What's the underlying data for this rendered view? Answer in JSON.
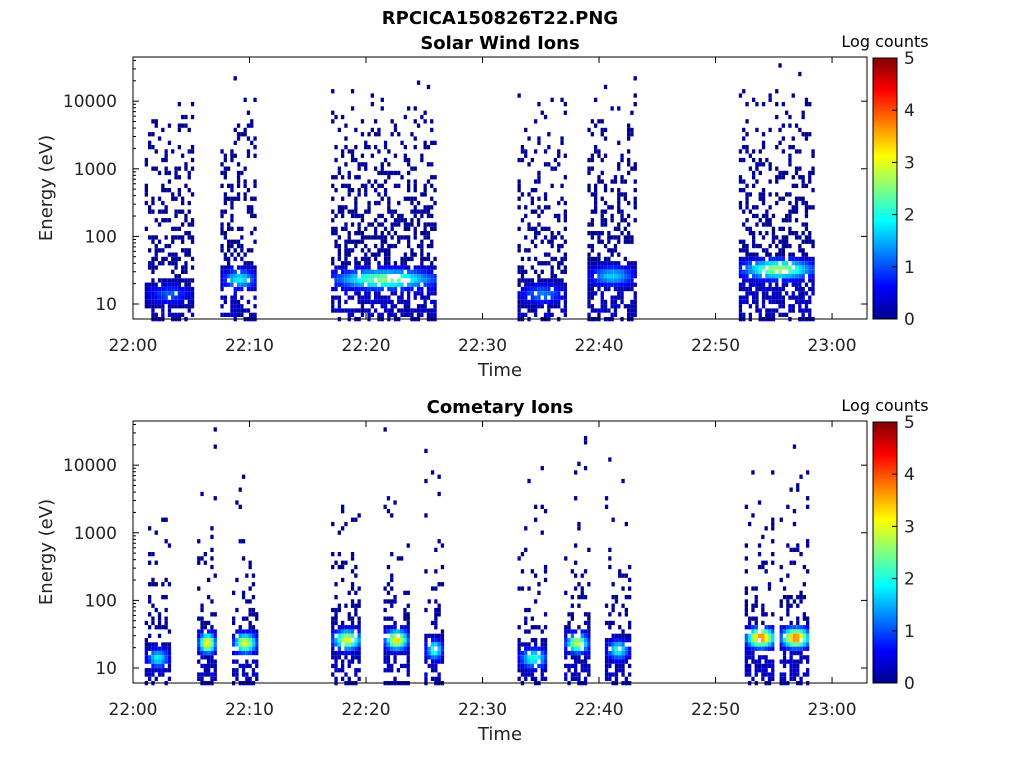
{
  "figure": {
    "title": "RPCICA150826T22.PNG"
  },
  "colorbar": {
    "label": "Log counts",
    "range": [
      0,
      5
    ],
    "ticks": [
      "0",
      "1",
      "2",
      "3",
      "4",
      "5"
    ],
    "colormap": "jet"
  },
  "chart_data": [
    {
      "type": "heatmap",
      "title": "Solar Wind Ions",
      "xlabel": "Time",
      "ylabel": "Energy (eV)",
      "x_ticks": [
        "22:00",
        "22:10",
        "22:20",
        "22:30",
        "22:40",
        "22:50",
        "23:00"
      ],
      "y_ticks": [
        "10",
        "100",
        "1000",
        "10000"
      ],
      "yscale": "log",
      "ylim": [
        6,
        45000
      ],
      "xlim_minutes": [
        0,
        63
      ],
      "value_label": "Log counts",
      "bursts": [
        {
          "start_min": 1,
          "end_min": 5,
          "peak_energy_eV": 15,
          "peak_log_counts": 1.0
        },
        {
          "start_min": 7.5,
          "end_min": 10.5,
          "peak_energy_eV": 25,
          "peak_log_counts": 1.8
        },
        {
          "start_min": 17,
          "end_min": 26,
          "peak_energy_eV": 25,
          "peak_log_counts": 2.5
        },
        {
          "start_min": 33,
          "end_min": 37,
          "peak_energy_eV": 15,
          "peak_log_counts": 1.2
        },
        {
          "start_min": 39,
          "end_min": 43,
          "peak_energy_eV": 28,
          "peak_log_counts": 1.6
        },
        {
          "start_min": 52,
          "end_min": 58.5,
          "peak_energy_eV": 35,
          "peak_log_counts": 2.6
        }
      ]
    },
    {
      "type": "heatmap",
      "title": "Cometary Ions",
      "xlabel": "Time",
      "ylabel": "Energy (eV)",
      "x_ticks": [
        "22:00",
        "22:10",
        "22:20",
        "22:30",
        "22:40",
        "22:50",
        "23:00"
      ],
      "y_ticks": [
        "10",
        "100",
        "1000",
        "10000"
      ],
      "yscale": "log",
      "ylim": [
        6,
        45000
      ],
      "xlim_minutes": [
        0,
        63
      ],
      "value_label": "Log counts",
      "bursts": [
        {
          "start_min": 1,
          "end_min": 3,
          "peak_energy_eV": 15,
          "peak_log_counts": 1.8
        },
        {
          "start_min": 5.5,
          "end_min": 7,
          "peak_energy_eV": 25,
          "peak_log_counts": 3.3
        },
        {
          "start_min": 8.5,
          "end_min": 10.5,
          "peak_energy_eV": 25,
          "peak_log_counts": 3.0
        },
        {
          "start_min": 17,
          "end_min": 19.5,
          "peak_energy_eV": 28,
          "peak_log_counts": 3.0
        },
        {
          "start_min": 21.5,
          "end_min": 23.5,
          "peak_energy_eV": 28,
          "peak_log_counts": 3.3
        },
        {
          "start_min": 25,
          "end_min": 26.5,
          "peak_energy_eV": 20,
          "peak_log_counts": 2.2
        },
        {
          "start_min": 33,
          "end_min": 35.5,
          "peak_energy_eV": 15,
          "peak_log_counts": 2.0
        },
        {
          "start_min": 37,
          "end_min": 39,
          "peak_energy_eV": 25,
          "peak_log_counts": 2.8
        },
        {
          "start_min": 40.5,
          "end_min": 42.5,
          "peak_energy_eV": 20,
          "peak_log_counts": 2.0
        },
        {
          "start_min": 52.5,
          "end_min": 55,
          "peak_energy_eV": 30,
          "peak_log_counts": 3.8
        },
        {
          "start_min": 55.5,
          "end_min": 58,
          "peak_energy_eV": 30,
          "peak_log_counts": 3.8
        }
      ]
    }
  ]
}
